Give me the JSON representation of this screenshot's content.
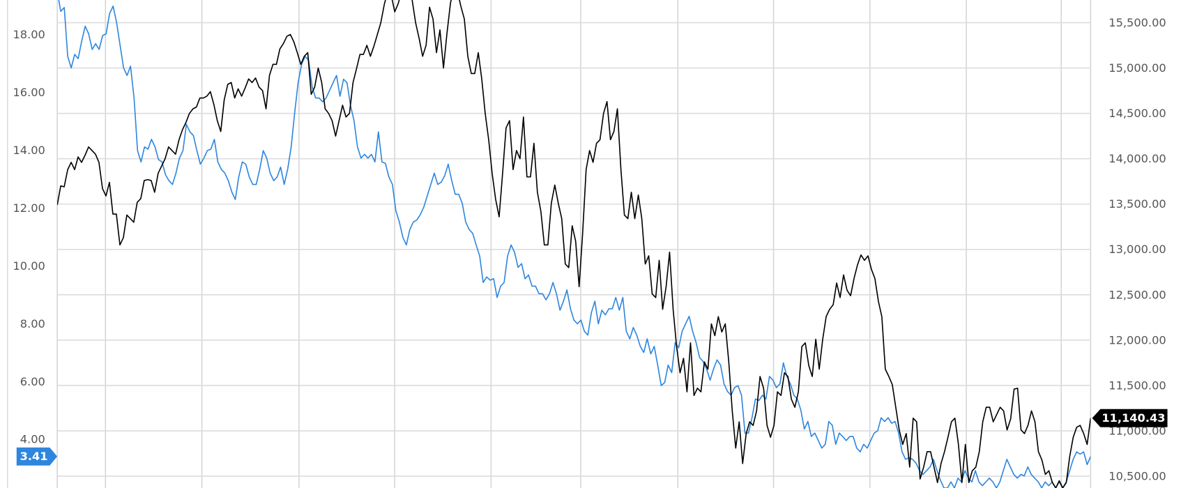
{
  "chart_data": {
    "type": "line",
    "title": "",
    "xlabel": "",
    "grid": true,
    "legend": "none",
    "left_axis": {
      "ylim": [
        2.32,
        19.2
      ],
      "ticks": [
        4,
        6,
        8,
        10,
        12,
        14,
        16,
        18
      ],
      "tick_labels": [
        "4.00",
        "6.00",
        "8.00",
        "10.00",
        "12.00",
        "14.00",
        "16.00",
        "18.00"
      ]
    },
    "right_axis": {
      "ylim": [
        10370,
        15750
      ],
      "ticks": [
        10500,
        11000,
        11500,
        12000,
        12500,
        13000,
        13500,
        14000,
        14500,
        15000,
        15500
      ],
      "tick_labels": [
        "10,500.00",
        "11,000.00",
        "11,500.00",
        "12,000.00",
        "12,500.00",
        "13,000.00",
        "13,500.00",
        "14,000.00",
        "14,500.00",
        "15,000.00",
        "15,500.00"
      ]
    },
    "series": [
      {
        "axis": "left",
        "color": "#2e86de",
        "last_value_label": "3.41",
        "values": [
          19.5,
          18.81,
          18.94,
          17.25,
          16.85,
          17.32,
          17.17,
          17.77,
          18.29,
          18.03,
          17.49,
          17.69,
          17.49,
          17.97,
          18.03,
          18.73,
          18.99,
          18.42,
          17.64,
          16.85,
          16.59,
          16.91,
          15.81,
          13.99,
          13.6,
          14.12,
          14.04,
          14.38,
          14.12,
          13.68,
          13.6,
          13.16,
          12.95,
          12.82,
          13.21,
          13.73,
          13.99,
          14.9,
          14.64,
          14.51,
          13.99,
          13.52,
          13.73,
          13.99,
          14.04,
          14.38,
          13.6,
          13.34,
          13.21,
          12.95,
          12.56,
          12.3,
          13.08,
          13.6,
          13.52,
          13.08,
          12.82,
          12.82,
          13.34,
          13.99,
          13.73,
          13.21,
          12.95,
          13.08,
          13.42,
          12.82,
          13.34,
          14.12,
          15.29,
          16.34,
          16.98,
          17.25,
          17.12,
          16.2,
          15.81,
          15.81,
          15.68,
          15.81,
          16.07,
          16.34,
          16.59,
          15.87,
          16.46,
          16.34,
          15.55,
          15.03,
          14.12,
          13.73,
          13.86,
          13.73,
          13.86,
          13.6,
          14.64,
          13.6,
          13.55,
          13.08,
          12.82,
          11.91,
          11.52,
          10.99,
          10.73,
          11.26,
          11.52,
          11.59,
          11.78,
          12.04,
          12.43,
          12.82,
          13.21,
          12.82,
          12.9,
          13.13,
          13.52,
          12.95,
          12.48,
          12.48,
          12.17,
          11.52,
          11.26,
          11.13,
          10.73,
          10.34,
          9.43,
          9.62,
          9.51,
          9.56,
          8.91,
          9.3,
          9.43,
          10.34,
          10.73,
          10.47,
          9.95,
          10.08,
          9.56,
          9.69,
          9.3,
          9.3,
          9.04,
          9.04,
          8.83,
          9.04,
          9.43,
          9.04,
          8.47,
          8.78,
          9.17,
          8.52,
          8.13,
          8.0,
          8.13,
          7.74,
          7.61,
          8.39,
          8.78,
          8.0,
          8.47,
          8.31,
          8.52,
          8.52,
          8.91,
          8.47,
          8.91,
          7.74,
          7.48,
          7.87,
          7.61,
          7.22,
          7.01,
          7.48,
          6.96,
          7.22,
          6.57,
          5.86,
          5.97,
          6.57,
          6.31,
          7.35,
          7.17,
          7.74,
          8.0,
          8.26,
          7.74,
          7.35,
          6.83,
          6.7,
          6.44,
          6.05,
          6.44,
          6.75,
          6.57,
          5.92,
          5.66,
          5.53,
          5.79,
          5.86,
          5.53,
          4.22,
          4.22,
          4.75,
          5.4,
          5.35,
          5.53,
          5.4,
          6.18,
          6.05,
          5.79,
          5.92,
          6.65,
          6.18,
          5.92,
          5.53,
          5.4,
          5.01,
          4.36,
          4.62,
          4.1,
          4.22,
          3.96,
          3.7,
          3.83,
          4.62,
          4.49,
          3.83,
          4.22,
          4.1,
          3.96,
          4.1,
          4.1,
          3.7,
          3.57,
          3.83,
          3.7,
          3.96,
          4.22,
          4.3,
          4.75,
          4.62,
          4.75,
          4.56,
          4.62,
          4.22,
          3.57,
          3.31,
          3.37,
          3.31,
          3.18,
          2.92,
          2.79,
          2.92,
          3.05,
          3.31,
          2.92,
          2.58,
          2.32,
          2.32,
          2.53,
          2.32,
          2.66,
          2.53,
          2.92,
          2.66,
          2.53,
          2.92,
          2.53,
          2.4,
          2.53,
          2.66,
          2.53,
          2.32,
          2.53,
          2.92,
          3.31,
          3.05,
          2.79,
          2.66,
          2.79,
          2.74,
          3.05,
          2.79,
          2.66,
          2.53,
          2.32,
          2.53,
          2.4,
          2.53,
          2.32,
          2.53,
          2.32,
          2.53,
          2.92,
          3.31,
          3.57,
          3.49,
          3.57,
          3.13,
          3.41
        ]
      },
      {
        "axis": "right",
        "color": "#000000",
        "last_value_label": "11,140.43",
        "values": [
          13490,
          13700,
          13690,
          13880,
          13960,
          13880,
          14020,
          13960,
          14040,
          14130,
          14090,
          14050,
          13960,
          13670,
          13590,
          13740,
          13390,
          13390,
          13050,
          13130,
          13380,
          13340,
          13300,
          13520,
          13560,
          13760,
          13770,
          13760,
          13630,
          13840,
          13920,
          14000,
          14130,
          14090,
          14050,
          14210,
          14320,
          14400,
          14500,
          14550,
          14570,
          14670,
          14670,
          14690,
          14740,
          14600,
          14420,
          14300,
          14650,
          14820,
          14840,
          14670,
          14770,
          14690,
          14780,
          14880,
          14840,
          14890,
          14790,
          14750,
          14550,
          14920,
          15040,
          15040,
          15210,
          15270,
          15350,
          15370,
          15290,
          15170,
          15040,
          15130,
          15170,
          14710,
          14790,
          15000,
          14840,
          14550,
          14500,
          14420,
          14250,
          14420,
          14590,
          14460,
          14500,
          14840,
          14990,
          15150,
          15150,
          15250,
          15130,
          15240,
          15370,
          15500,
          15700,
          15850,
          15800,
          15620,
          15710,
          15850,
          15900,
          15800,
          15750,
          15500,
          15330,
          15130,
          15250,
          15670,
          15540,
          15170,
          15420,
          15000,
          15380,
          15710,
          15900,
          15850,
          15680,
          15540,
          15130,
          14940,
          14940,
          15170,
          14880,
          14500,
          14210,
          13840,
          13550,
          13360,
          13840,
          14340,
          14420,
          13880,
          14090,
          14000,
          14460,
          13800,
          13800,
          14170,
          13630,
          13420,
          13050,
          13050,
          13510,
          13710,
          13510,
          13340,
          12840,
          12800,
          13260,
          13090,
          12590,
          13170,
          13880,
          14090,
          13960,
          14170,
          14210,
          14500,
          14630,
          14210,
          14300,
          14550,
          13880,
          13380,
          13340,
          13630,
          13340,
          13600,
          13340,
          12840,
          12930,
          12510,
          12470,
          12880,
          12340,
          12590,
          12970,
          12340,
          11930,
          11640,
          11800,
          11430,
          11970,
          11390,
          11470,
          11430,
          11760,
          11680,
          12180,
          12050,
          12260,
          12090,
          12180,
          11760,
          11220,
          10810,
          11100,
          10640,
          10970,
          11100,
          11060,
          11220,
          11600,
          11470,
          11060,
          10930,
          11060,
          11430,
          11390,
          11640,
          11600,
          11350,
          11260,
          11430,
          11930,
          11970,
          11720,
          11600,
          12010,
          11680,
          12010,
          12260,
          12340,
          12390,
          12630,
          12470,
          12720,
          12550,
          12490,
          12680,
          12830,
          12940,
          12880,
          12930,
          12780,
          12680,
          12430,
          12260,
          11680,
          11600,
          11510,
          11260,
          11010,
          10850,
          10970,
          10600,
          11140,
          11100,
          10470,
          10600,
          10770,
          10770,
          10600,
          10430,
          10640,
          10770,
          10930,
          11100,
          11140,
          10850,
          10430,
          10850,
          10430,
          10560,
          10600,
          10770,
          11100,
          11260,
          11260,
          11100,
          11180,
          11260,
          11220,
          11010,
          11130,
          11460,
          11470,
          11010,
          10970,
          11060,
          11220,
          11100,
          10770,
          10680,
          10520,
          10560,
          10430,
          10370,
          10450,
          10370,
          10430,
          10720,
          10930,
          11040,
          11060,
          10970,
          10850,
          11140.43
        ]
      }
    ]
  }
}
